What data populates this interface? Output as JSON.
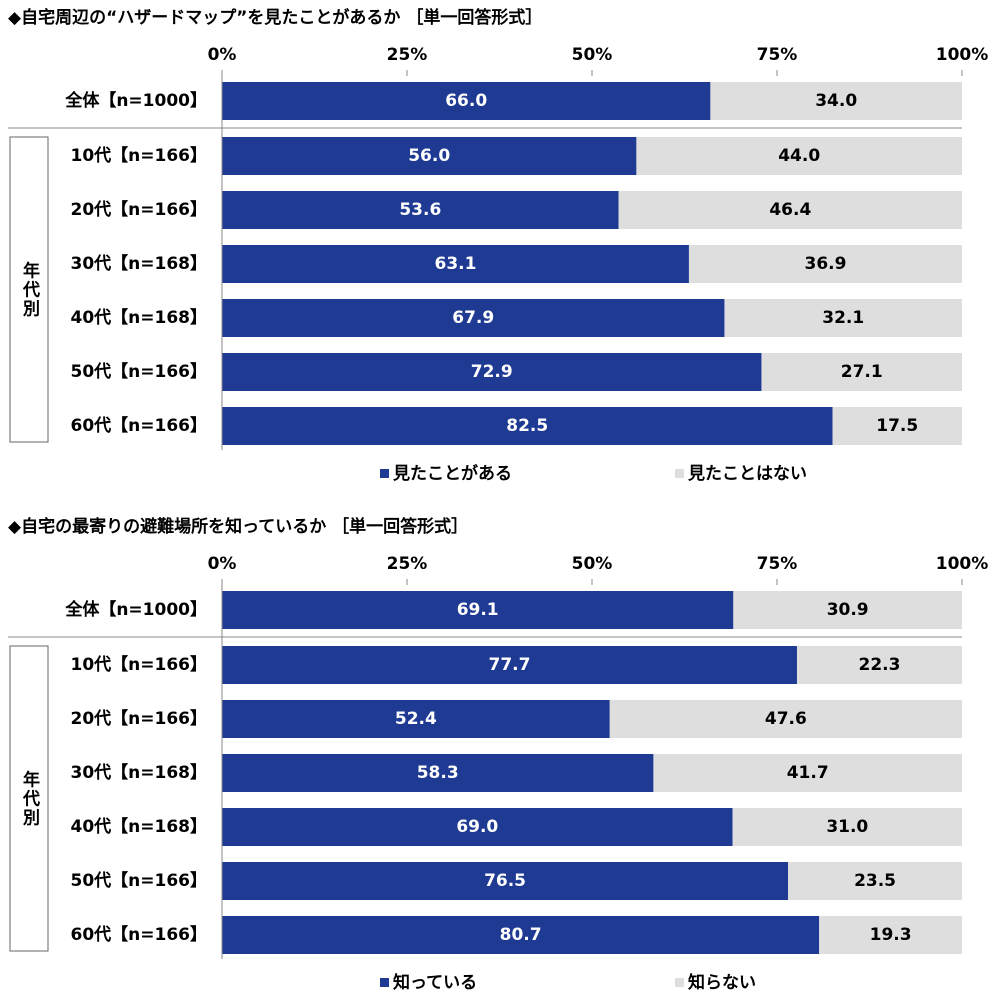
{
  "chart_data": [
    {
      "type": "bar",
      "orientation": "horizontal",
      "stacked": true,
      "title": "◆自宅周辺の“ハザードマップ”を見たことがあるか ［単一回答形式］",
      "group_label": "年代別",
      "categories": [
        "全体【n=1000】",
        "10代【n=166】",
        "20代【n=166】",
        "30代【n=168】",
        "40代【n=168】",
        "50代【n=166】",
        "60代【n=166】"
      ],
      "series": [
        {
          "name": "見たことがある",
          "color": "#1f3a93",
          "values": [
            66.0,
            56.0,
            53.6,
            63.1,
            67.9,
            72.9,
            82.5
          ],
          "value_labels": [
            "66.0",
            "56.0",
            "53.6",
            "63.1",
            "67.9",
            "72.9",
            "82.5"
          ]
        },
        {
          "name": "見たことはない",
          "color": "#dedede",
          "values": [
            34.0,
            44.0,
            46.4,
            36.9,
            32.1,
            27.1,
            17.5
          ],
          "value_labels": [
            "34.0",
            "44.0",
            "46.4",
            "36.9",
            "32.1",
            "27.1",
            "17.5"
          ]
        }
      ],
      "xlim": [
        0,
        100
      ],
      "xticks": [
        {
          "value": 0,
          "label": "0%"
        },
        {
          "value": 25,
          "label": "25%"
        },
        {
          "value": 50,
          "label": "50%"
        },
        {
          "value": 75,
          "label": "75%"
        },
        {
          "value": 100,
          "label": "100%"
        }
      ]
    },
    {
      "type": "bar",
      "orientation": "horizontal",
      "stacked": true,
      "title": "◆自宅の最寄りの避難場所を知っているか ［単一回答形式］",
      "group_label": "年代別",
      "categories": [
        "全体【n=1000】",
        "10代【n=166】",
        "20代【n=166】",
        "30代【n=168】",
        "40代【n=168】",
        "50代【n=166】",
        "60代【n=166】"
      ],
      "series": [
        {
          "name": "知っている",
          "color": "#1f3a93",
          "values": [
            69.1,
            77.7,
            52.4,
            58.3,
            69.0,
            76.5,
            80.7
          ],
          "value_labels": [
            "69.1",
            "77.7",
            "52.4",
            "58.3",
            "69.0",
            "76.5",
            "80.7"
          ]
        },
        {
          "name": "知らない",
          "color": "#dedede",
          "values": [
            30.9,
            22.3,
            47.6,
            41.7,
            31.0,
            23.5,
            19.3
          ],
          "value_labels": [
            "30.9",
            "22.3",
            "47.6",
            "41.7",
            "31.0",
            "23.5",
            "19.3"
          ]
        }
      ],
      "xlim": [
        0,
        100
      ],
      "xticks": [
        {
          "value": 0,
          "label": "0%"
        },
        {
          "value": 25,
          "label": "25%"
        },
        {
          "value": 50,
          "label": "50%"
        },
        {
          "value": 75,
          "label": "75%"
        },
        {
          "value": 100,
          "label": "100%"
        }
      ]
    }
  ]
}
